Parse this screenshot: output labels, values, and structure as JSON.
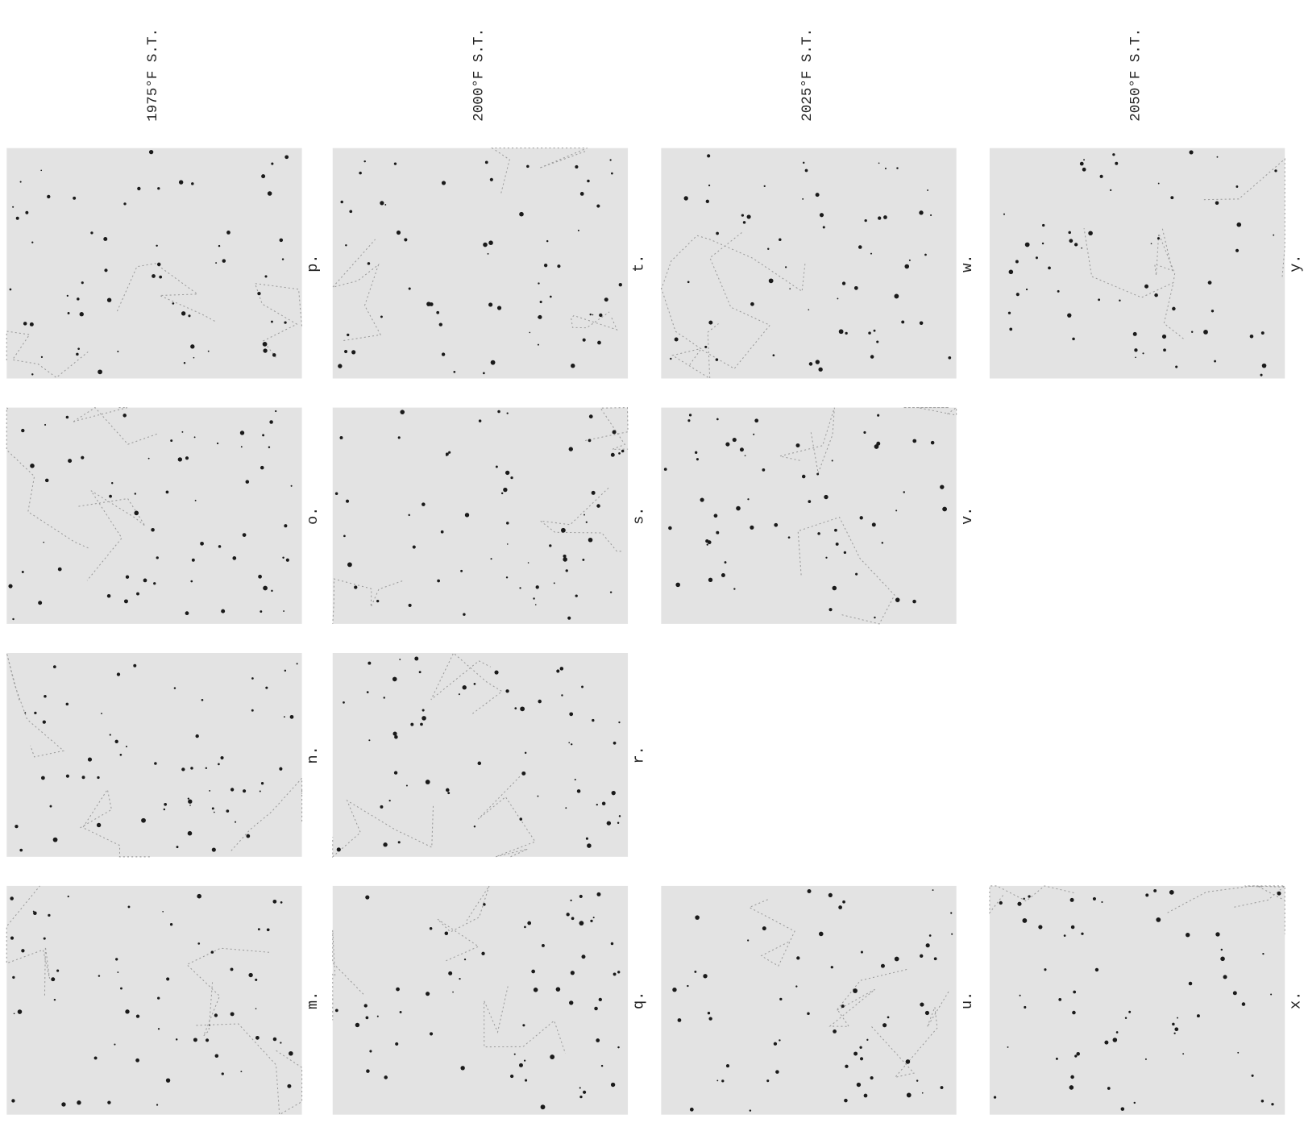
{
  "columns": [
    {
      "title": "1975°F S.T.",
      "panels": [
        "p.",
        "o.",
        "n.",
        "m."
      ]
    },
    {
      "title": "2000°F S.T.",
      "panels": [
        "t.",
        "s.",
        "r.",
        "q."
      ]
    },
    {
      "title": "2025°F S.T.",
      "panels": [
        "w.",
        "v.",
        "u."
      ]
    },
    {
      "title": "2050°F S.T.",
      "panels": [
        "y.",
        "x."
      ]
    }
  ]
}
